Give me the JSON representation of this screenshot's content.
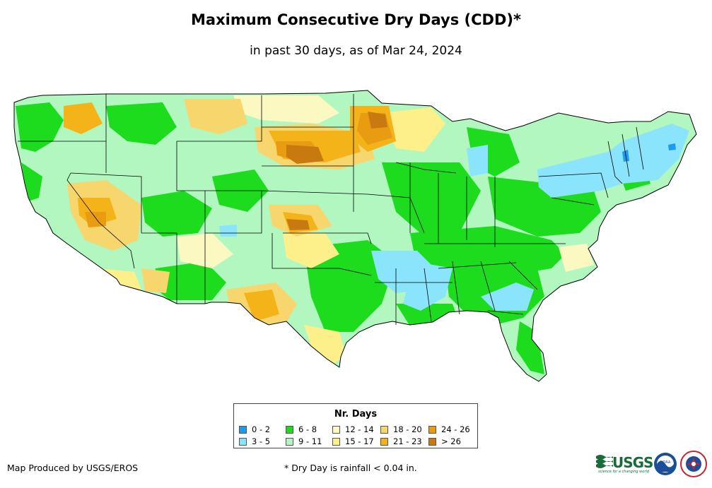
{
  "title": "Maximum Consecutive Dry Days (CDD)*",
  "subtitle": "in past 30 days, as of Mar 24, 2024",
  "legend": {
    "title": "Nr. Days",
    "items": [
      {
        "label": "0 - 2",
        "color": "#1b9cf0"
      },
      {
        "label": "3 - 5",
        "color": "#8ae4fb"
      },
      {
        "label": "6 - 8",
        "color": "#1ddb1d"
      },
      {
        "label": "9 - 11",
        "color": "#b2f7c0"
      },
      {
        "label": "12 - 14",
        "color": "#fbf8c2"
      },
      {
        "label": "15 - 17",
        "color": "#fdf08a"
      },
      {
        "label": "18 - 20",
        "color": "#f7d66e"
      },
      {
        "label": "21 - 23",
        "color": "#f4b318"
      },
      {
        "label": "24 - 26",
        "color": "#e89c12"
      },
      {
        "label": "> 26",
        "color": "#c87a10"
      }
    ]
  },
  "credit": "Map Produced by USGS/EROS",
  "footnote": "* Dry Day is rainfall < 0.04 in.",
  "logos": {
    "usgs": "USGS",
    "usgs_tagline": "science for a changing world",
    "noaa": "NOAA"
  }
}
